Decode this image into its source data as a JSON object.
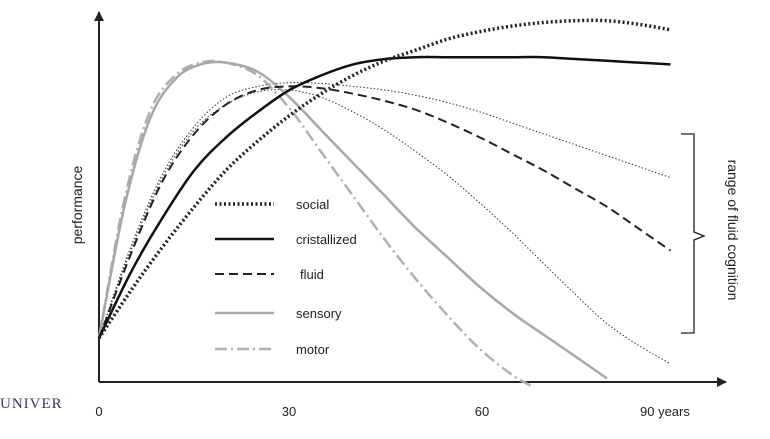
{
  "chart_data": {
    "type": "line",
    "title": "",
    "xlabel": "",
    "ylabel": "performance",
    "x_ticks": [
      {
        "value": 0,
        "label": "0"
      },
      {
        "value": 30,
        "label": "30"
      },
      {
        "value": 60,
        "label": "60"
      },
      {
        "value": 90,
        "label": "90 years"
      }
    ],
    "xlim": [
      0,
      100
    ],
    "ylim": [
      0,
      100
    ],
    "grid": false,
    "legend_position": "center-left",
    "series": [
      {
        "name": "social",
        "color": "#222222",
        "style": "dotted-bold",
        "x": [
          0,
          5,
          10,
          15,
          20,
          25,
          30,
          35,
          40,
          45,
          50,
          55,
          60,
          65,
          70,
          75,
          80,
          85,
          90
        ],
        "y": [
          12,
          25,
          37,
          48,
          58,
          66,
          73,
          79,
          84,
          88,
          91,
          94,
          96,
          97.5,
          98.5,
          99,
          99,
          98,
          96.5
        ]
      },
      {
        "name": "cristallized",
        "color": "#111111",
        "style": "solid-bold",
        "x": [
          0,
          5,
          10,
          15,
          20,
          25,
          30,
          35,
          40,
          45,
          50,
          55,
          60,
          65,
          70,
          75,
          80,
          85,
          90
        ],
        "y": [
          12,
          30,
          45,
          58,
          67,
          74,
          80,
          84,
          87,
          88.5,
          89,
          89,
          89,
          89,
          89,
          88.5,
          88,
          87.5,
          87
        ]
      },
      {
        "name": "fluid",
        "color": "#222222",
        "style": "dashed",
        "x": [
          0,
          5,
          10,
          15,
          20,
          25,
          30,
          35,
          40,
          45,
          50,
          55,
          60,
          65,
          70,
          75,
          80,
          85,
          90
        ],
        "y": [
          12,
          35,
          55,
          68,
          76,
          80,
          81,
          80.5,
          79,
          77,
          74.5,
          71,
          67,
          62.5,
          58,
          53,
          48,
          42,
          36
        ]
      },
      {
        "name": "range of fluid cognition (upper bound)",
        "color": "#333333",
        "style": "thin-dotted",
        "x": [
          0,
          5,
          10,
          15,
          20,
          25,
          30,
          35,
          40,
          45,
          50,
          55,
          60,
          65,
          70,
          75,
          80,
          85,
          90
        ],
        "y": [
          12,
          37,
          57,
          70,
          78,
          81,
          82,
          81.8,
          81,
          80,
          78.5,
          76.5,
          74,
          71,
          68,
          65,
          62,
          59,
          56
        ]
      },
      {
        "name": "range of fluid cognition (lower bound)",
        "color": "#333333",
        "style": "thin-dotted",
        "x": [
          0,
          5,
          10,
          15,
          20,
          25,
          30,
          35,
          40,
          45,
          50,
          55,
          60,
          65,
          70,
          75,
          80,
          85,
          90
        ],
        "y": [
          12,
          36,
          56,
          69,
          76,
          79.5,
          80,
          78,
          74,
          69,
          63,
          56.5,
          49,
          41,
          32.5,
          24,
          16,
          10,
          5
        ]
      },
      {
        "name": "sensory",
        "color": "#a8a8a8",
        "style": "solid-gray",
        "x": [
          0,
          4,
          8,
          12,
          16,
          20,
          25,
          30,
          35,
          40,
          45,
          50,
          55,
          60,
          65,
          70,
          75,
          80
        ],
        "y": [
          12,
          48,
          72,
          83,
          87,
          87.5,
          85,
          78,
          69,
          60,
          51,
          42,
          34,
          26,
          19,
          13,
          7,
          1
        ]
      },
      {
        "name": "motor",
        "color": "#b0b0b0",
        "style": "dash-dot-gray",
        "x": [
          0,
          4,
          8,
          12,
          16,
          20,
          25,
          30,
          35,
          40,
          45,
          50,
          55,
          60,
          65,
          68
        ],
        "y": [
          12,
          50,
          74,
          84,
          87.5,
          87.5,
          84,
          75,
          63,
          51,
          39,
          28,
          18,
          9,
          2,
          -1
        ]
      }
    ],
    "legend": [
      "social",
      "cristallized",
      "fluid",
      "sensory",
      "motor"
    ],
    "annotations": [
      {
        "text": "range of fluid cognition",
        "attached_to": "right brace spanning upper and lower fluid bounds at 90 years"
      }
    ]
  },
  "watermark": "UNIVER"
}
